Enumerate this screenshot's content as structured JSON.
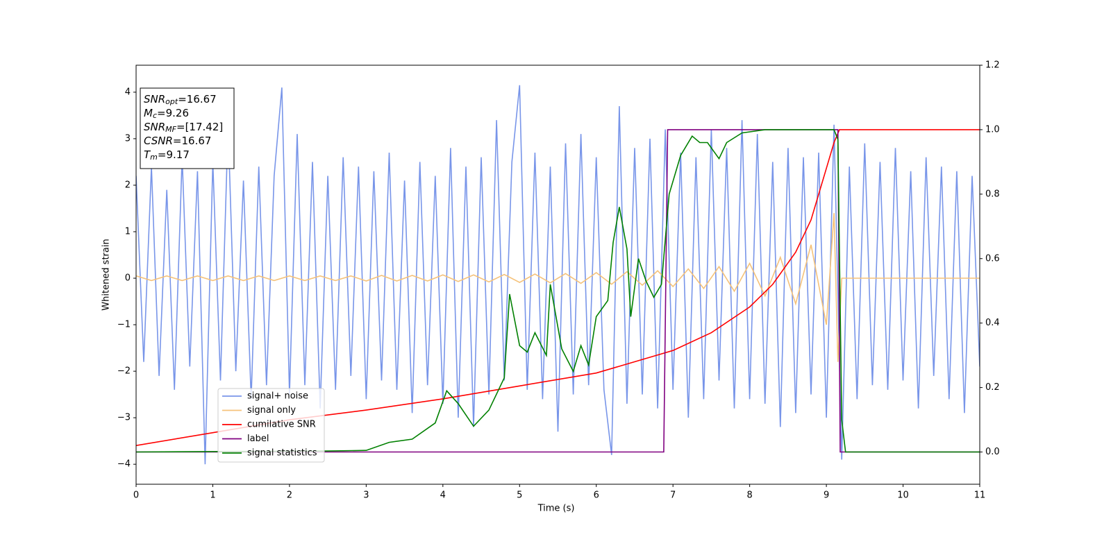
{
  "chart_data": {
    "type": "line",
    "xlabel": "Time (s)",
    "ylabel": "Whitened strain",
    "xlim": [
      0,
      11
    ],
    "xticks": [
      0,
      1,
      2,
      3,
      4,
      5,
      6,
      7,
      8,
      9,
      10,
      11
    ],
    "ylim": [
      -4.43,
      4.58
    ],
    "yticks": [
      {
        "value": -4,
        "label": "−4"
      },
      {
        "value": -3,
        "label": "−3"
      },
      {
        "value": -2,
        "label": "−2"
      },
      {
        "value": -1,
        "label": "−1"
      },
      0,
      1,
      2,
      3,
      4
    ],
    "y2lim": [
      -0.1,
      1.2
    ],
    "y2ticks": [
      {
        "value": 0,
        "label": "0.0"
      },
      {
        "value": 0.2,
        "label": "0.2"
      },
      {
        "value": 0.4,
        "label": "0.4"
      },
      {
        "value": 0.6,
        "label": "0.6"
      },
      {
        "value": 0.8,
        "label": "0.8"
      },
      {
        "value": 1,
        "label": "1.0"
      },
      {
        "value": 1.2,
        "label": "1.2"
      }
    ],
    "legend": "lower left",
    "annotation": [
      {
        "symbol": "SNR",
        "subscript": "opt",
        "text": "=16.67"
      },
      {
        "symbol": "M",
        "subscript": "c",
        "text": "=9.26"
      },
      {
        "symbol": "SNR",
        "subscript": "MF",
        "text": "=[17.42]"
      },
      {
        "symbol": "CSNR",
        "subscript": "",
        "text": "=16.67"
      },
      {
        "symbol": "T",
        "subscript": "m",
        "text": "=9.17"
      }
    ],
    "series": [
      {
        "name": "signal+ noise",
        "color": "#7895e9",
        "x": [
          0,
          0.1,
          0.2,
          0.3,
          0.4,
          0.5,
          0.6,
          0.7,
          0.8,
          0.9,
          1,
          1.1,
          1.2,
          1.3,
          1.4,
          1.5,
          1.6,
          1.7,
          1.8,
          1.9,
          2,
          2.1,
          2.2,
          2.3,
          2.4,
          2.5,
          2.6,
          2.7,
          2.8,
          2.9,
          3,
          3.1,
          3.2,
          3.3,
          3.4,
          3.5,
          3.6,
          3.7,
          3.8,
          3.9,
          4,
          4.1,
          4.2,
          4.3,
          4.4,
          4.5,
          4.6,
          4.7,
          4.8,
          4.9,
          5,
          5.1,
          5.2,
          5.3,
          5.4,
          5.5,
          5.6,
          5.7,
          5.8,
          5.9,
          6,
          6.1,
          6.2,
          6.3,
          6.4,
          6.5,
          6.6,
          6.7,
          6.8,
          6.9,
          7,
          7.1,
          7.2,
          7.3,
          7.4,
          7.5,
          7.6,
          7.7,
          7.8,
          7.9,
          8,
          8.1,
          8.2,
          8.3,
          8.4,
          8.5,
          8.6,
          8.7,
          8.8,
          8.9,
          9,
          9.1,
          9.2,
          9.3,
          9.4,
          9.5,
          9.6,
          9.7,
          9.8,
          9.9,
          10,
          10.1,
          10.2,
          10.3,
          10.4,
          10.5,
          10.6,
          10.7,
          10.8,
          10.9,
          11
        ],
        "values": [
          2.2,
          -1.8,
          2.4,
          -2.1,
          1.9,
          -2.4,
          2.6,
          -1.9,
          2.3,
          -4.0,
          2.5,
          -2.2,
          3.3,
          -2.0,
          2.1,
          -2.6,
          2.4,
          -2.3,
          2.2,
          4.1,
          -2.5,
          3.1,
          -2.3,
          2.5,
          -2.8,
          2.2,
          -2.4,
          2.6,
          -2.1,
          2.4,
          -2.6,
          2.3,
          -2.2,
          2.7,
          -2.4,
          2.1,
          -2.9,
          2.5,
          -2.3,
          2.2,
          -2.7,
          2.8,
          -3.0,
          2.4,
          -3.2,
          2.6,
          -2.5,
          3.4,
          -2.2,
          2.5,
          4.15,
          -2.4,
          2.7,
          -2.6,
          2.4,
          -3.3,
          2.9,
          -2.5,
          3.1,
          -2.3,
          2.6,
          -2.4,
          -3.8,
          3.7,
          -2.7,
          2.8,
          -2.5,
          3.0,
          -2.8,
          3.2,
          -2.4,
          2.7,
          -3.0,
          2.6,
          -2.6,
          3.2,
          -2.2,
          2.8,
          -2.8,
          3.4,
          -2.6,
          3.1,
          -2.7,
          2.5,
          -3.2,
          2.8,
          -2.9,
          2.6,
          -2.5,
          2.7,
          -3.0,
          3.3,
          -3.9,
          2.4,
          -2.6,
          2.9,
          -2.3,
          2.5,
          -2.4,
          2.8,
          -2.2,
          2.3,
          -2.8,
          2.6,
          -2.1,
          2.4,
          -2.6,
          2.3,
          -2.9,
          2.2,
          -1.9
        ]
      },
      {
        "name": "signal only",
        "color": "#f5c27a",
        "x": [
          0,
          0.2,
          0.4,
          0.6,
          0.8,
          1,
          1.2,
          1.4,
          1.6,
          1.8,
          2,
          2.2,
          2.4,
          2.6,
          2.8,
          3,
          3.2,
          3.4,
          3.6,
          3.8,
          4,
          4.2,
          4.4,
          4.6,
          4.8,
          5,
          5.2,
          5.4,
          5.6,
          5.8,
          6,
          6.2,
          6.4,
          6.6,
          6.8,
          7,
          7.2,
          7.4,
          7.6,
          7.8,
          8,
          8.2,
          8.4,
          8.6,
          8.8,
          9,
          9.1,
          9.15,
          9.2,
          11
        ],
        "values": [
          0.05,
          -0.05,
          0.05,
          -0.05,
          0.05,
          -0.05,
          0.05,
          -0.05,
          0.05,
          -0.05,
          0.05,
          -0.05,
          0.05,
          -0.05,
          0.05,
          -0.06,
          0.06,
          -0.06,
          0.06,
          -0.06,
          0.07,
          -0.07,
          0.07,
          -0.08,
          0.08,
          -0.09,
          0.09,
          -0.1,
          0.1,
          -0.11,
          0.12,
          -0.13,
          0.14,
          -0.15,
          0.16,
          -0.18,
          0.2,
          -0.22,
          0.25,
          -0.28,
          0.32,
          -0.38,
          0.45,
          -0.55,
          0.72,
          -1.0,
          1.4,
          -1.8,
          0,
          0
        ]
      },
      {
        "name": "cumilative SNR",
        "color": "#ff0000",
        "axis": "y2",
        "x": [
          0,
          1,
          2,
          3,
          4,
          5,
          6,
          7,
          7.5,
          8,
          8.3,
          8.6,
          8.8,
          9,
          9.1,
          9.17,
          11
        ],
        "values": [
          0.02,
          0.06,
          0.1,
          0.13,
          0.165,
          0.205,
          0.245,
          0.315,
          0.37,
          0.45,
          0.52,
          0.62,
          0.72,
          0.88,
          0.96,
          1.0,
          1.0
        ]
      },
      {
        "name": "label",
        "color": "#800080",
        "axis": "y2",
        "x": [
          0,
          6.88,
          6.93,
          9.15,
          9.18,
          11
        ],
        "values": [
          0,
          0,
          1,
          1,
          0,
          0
        ]
      },
      {
        "name": "signal statistics",
        "color": "#008000",
        "axis": "y2",
        "x": [
          0,
          2.5,
          3.0,
          3.3,
          3.6,
          3.9,
          4.05,
          4.2,
          4.4,
          4.6,
          4.8,
          4.87,
          5.0,
          5.1,
          5.2,
          5.35,
          5.4,
          5.55,
          5.7,
          5.8,
          5.9,
          6.0,
          6.15,
          6.22,
          6.3,
          6.4,
          6.45,
          6.55,
          6.65,
          6.75,
          6.85,
          6.95,
          7.1,
          7.25,
          7.35,
          7.45,
          7.6,
          7.7,
          7.9,
          8.2,
          9.1,
          9.15,
          9.2,
          9.25,
          11
        ],
        "values": [
          0,
          0.003,
          0.005,
          0.03,
          0.04,
          0.09,
          0.19,
          0.15,
          0.08,
          0.13,
          0.23,
          0.49,
          0.33,
          0.31,
          0.37,
          0.3,
          0.52,
          0.32,
          0.25,
          0.33,
          0.27,
          0.42,
          0.47,
          0.65,
          0.76,
          0.63,
          0.42,
          0.6,
          0.53,
          0.48,
          0.52,
          0.8,
          0.92,
          0.98,
          0.96,
          0.96,
          0.91,
          0.96,
          0.99,
          1.0,
          1.0,
          0.97,
          0.1,
          0,
          0
        ]
      }
    ]
  }
}
